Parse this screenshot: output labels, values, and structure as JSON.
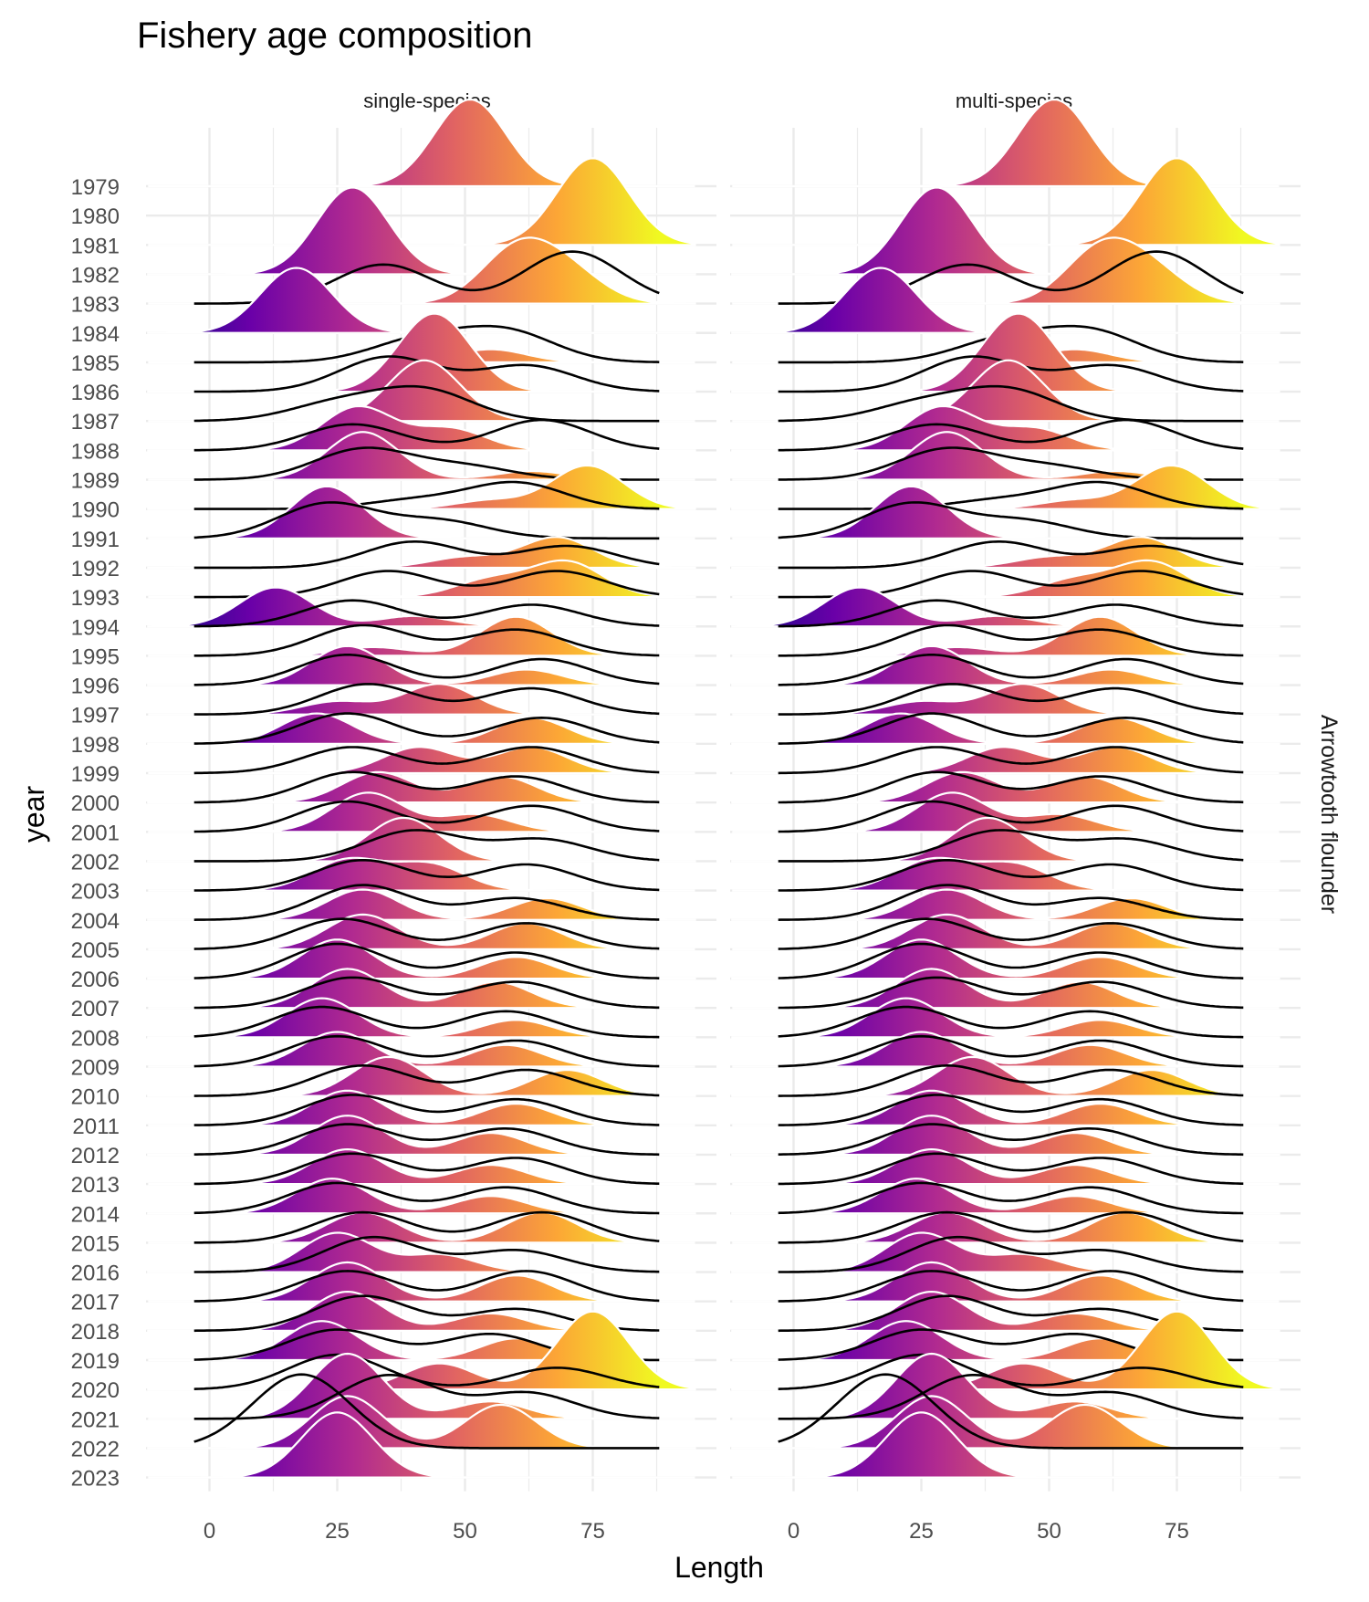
{
  "chart_data": {
    "type": "ridgeline",
    "title": "Fishery age composition",
    "xlabel": "Length",
    "ylabel": "year",
    "facet_right_label": "Arrowtooth flounder",
    "xlim": [
      -12,
      95
    ],
    "x_ticks": [
      0,
      25,
      50,
      75
    ],
    "grid": true,
    "palette": [
      "#0d0887",
      "#6a00a8",
      "#b12a90",
      "#e16462",
      "#fca636",
      "#f0f921"
    ],
    "years": [
      1979,
      1980,
      1981,
      1982,
      1983,
      1984,
      1985,
      1986,
      1987,
      1988,
      1989,
      1990,
      1991,
      1992,
      1993,
      1994,
      1995,
      1996,
      1997,
      1998,
      1999,
      2000,
      2001,
      2002,
      2003,
      2004,
      2005,
      2006,
      2007,
      2008,
      2009,
      2010,
      2011,
      2012,
      2013,
      2014,
      2015,
      2016,
      2017,
      2018,
      2019,
      2020,
      2021,
      2022,
      2023
    ],
    "panels": [
      {
        "name": "single-species"
      },
      {
        "name": "multi-species"
      }
    ],
    "observed_density_peaks": {
      "1979": [
        [
          51,
          1.0
        ]
      ],
      "1981": [
        [
          75,
          1.0
        ]
      ],
      "1982": [
        [
          28,
          1.0
        ]
      ],
      "1983": [
        [
          60,
          0.6
        ],
        [
          70,
          0.35
        ]
      ],
      "1984": [
        [
          17,
          0.75
        ]
      ],
      "1985": [
        [
          55,
          0.15
        ]
      ],
      "1986": [
        [
          44,
          0.9
        ]
      ],
      "1987": [
        [
          42,
          0.7
        ]
      ],
      "1988": [
        [
          29,
          0.5
        ],
        [
          47,
          0.25
        ]
      ],
      "1989": [
        [
          30,
          0.55
        ],
        [
          63,
          0.1
        ]
      ],
      "1990": [
        [
          74,
          0.5
        ],
        [
          55,
          0.1
        ]
      ],
      "1991": [
        [
          23,
          0.6
        ]
      ],
      "1992": [
        [
          68,
          0.35
        ],
        [
          50,
          0.12
        ]
      ],
      "1993": [
        [
          70,
          0.4
        ],
        [
          55,
          0.2
        ]
      ],
      "1994": [
        [
          13,
          0.45
        ],
        [
          40,
          0.12
        ]
      ],
      "1995": [
        [
          60,
          0.45
        ],
        [
          32,
          0.1
        ]
      ],
      "1996": [
        [
          27,
          0.45
        ],
        [
          62,
          0.18
        ]
      ],
      "1997": [
        [
          45,
          0.35
        ],
        [
          25,
          0.15
        ]
      ],
      "1998": [
        [
          21,
          0.35
        ],
        [
          63,
          0.3
        ]
      ],
      "1999": [
        [
          41,
          0.3
        ],
        [
          63,
          0.3
        ]
      ],
      "2000": [
        [
          33,
          0.35
        ],
        [
          57,
          0.3
        ]
      ],
      "2001": [
        [
          31,
          0.45
        ],
        [
          52,
          0.2
        ]
      ],
      "2002": [
        [
          38,
          0.5
        ]
      ],
      "2003": [
        [
          27,
          0.35
        ],
        [
          43,
          0.3
        ]
      ],
      "2004": [
        [
          30,
          0.35
        ],
        [
          66,
          0.25
        ]
      ],
      "2005": [
        [
          30,
          0.4
        ],
        [
          62,
          0.3
        ]
      ],
      "2006": [
        [
          25,
          0.45
        ],
        [
          60,
          0.25
        ]
      ],
      "2007": [
        [
          27,
          0.45
        ],
        [
          56,
          0.3
        ]
      ],
      "2008": [
        [
          22,
          0.45
        ],
        [
          60,
          0.2
        ]
      ],
      "2009": [
        [
          25,
          0.4
        ],
        [
          58,
          0.25
        ]
      ],
      "2010": [
        [
          35,
          0.45
        ],
        [
          70,
          0.3
        ]
      ],
      "2011": [
        [
          27,
          0.4
        ],
        [
          60,
          0.25
        ]
      ],
      "2012": [
        [
          27,
          0.45
        ],
        [
          55,
          0.25
        ]
      ],
      "2013": [
        [
          27,
          0.4
        ],
        [
          55,
          0.22
        ]
      ],
      "2014": [
        [
          24,
          0.4
        ],
        [
          55,
          0.2
        ]
      ],
      "2015": [
        [
          30,
          0.35
        ],
        [
          65,
          0.35
        ]
      ],
      "2016": [
        [
          25,
          0.45
        ],
        [
          45,
          0.2
        ]
      ],
      "2017": [
        [
          27,
          0.45
        ],
        [
          60,
          0.3
        ]
      ],
      "2018": [
        [
          27,
          0.45
        ],
        [
          55,
          0.2
        ]
      ],
      "2019": [
        [
          22,
          0.45
        ],
        [
          60,
          0.25
        ]
      ],
      "2020": [
        [
          75,
          0.9
        ],
        [
          45,
          0.3
        ]
      ],
      "2021": [
        [
          27,
          0.75
        ],
        [
          55,
          0.2
        ]
      ],
      "2022": [
        [
          27,
          0.6
        ],
        [
          57,
          0.5
        ]
      ],
      "2023": [
        [
          25,
          0.75
        ]
      ]
    },
    "predicted_density_peaks": {
      "1983": [
        [
          34,
          0.45
        ],
        [
          71,
          0.6
        ]
      ],
      "1985": [
        [
          41,
          0.25
        ],
        [
          58,
          0.35
        ]
      ],
      "1986": [
        [
          35,
          0.4
        ],
        [
          62,
          0.3
        ]
      ],
      "1987": [
        [
          42,
          0.35
        ],
        [
          25,
          0.2
        ]
      ],
      "1988": [
        [
          28,
          0.3
        ],
        [
          65,
          0.35
        ]
      ],
      "1989": [
        [
          30,
          0.35
        ],
        [
          50,
          0.15
        ]
      ],
      "1990": [
        [
          60,
          0.3
        ],
        [
          40,
          0.1
        ]
      ],
      "1991": [
        [
          23,
          0.4
        ],
        [
          45,
          0.2
        ]
      ],
      "1992": [
        [
          40,
          0.3
        ],
        [
          70,
          0.25
        ]
      ],
      "1993": [
        [
          35,
          0.3
        ],
        [
          68,
          0.3
        ]
      ],
      "1994": [
        [
          28,
          0.3
        ],
        [
          63,
          0.25
        ]
      ],
      "1995": [
        [
          30,
          0.35
        ],
        [
          60,
          0.3
        ]
      ],
      "1996": [
        [
          27,
          0.35
        ],
        [
          65,
          0.3
        ]
      ],
      "1997": [
        [
          31,
          0.35
        ],
        [
          63,
          0.3
        ]
      ],
      "1998": [
        [
          27,
          0.35
        ],
        [
          65,
          0.3
        ]
      ],
      "1999": [
        [
          28,
          0.3
        ],
        [
          63,
          0.3
        ]
      ],
      "2000": [
        [
          28,
          0.35
        ],
        [
          60,
          0.3
        ]
      ],
      "2001": [
        [
          27,
          0.35
        ],
        [
          63,
          0.3
        ]
      ],
      "2002": [
        [
          40,
          0.35
        ],
        [
          65,
          0.25
        ]
      ],
      "2003": [
        [
          30,
          0.35
        ],
        [
          62,
          0.3
        ]
      ],
      "2004": [
        [
          30,
          0.4
        ],
        [
          60,
          0.25
        ]
      ],
      "2005": [
        [
          26,
          0.35
        ],
        [
          62,
          0.3
        ]
      ],
      "2006": [
        [
          25,
          0.4
        ],
        [
          60,
          0.3
        ]
      ],
      "2007": [
        [
          28,
          0.35
        ],
        [
          60,
          0.3
        ]
      ],
      "2008": [
        [
          22,
          0.35
        ],
        [
          58,
          0.3
        ]
      ],
      "2009": [
        [
          25,
          0.35
        ],
        [
          60,
          0.3
        ]
      ],
      "2010": [
        [
          30,
          0.35
        ],
        [
          62,
          0.3
        ]
      ],
      "2011": [
        [
          28,
          0.35
        ],
        [
          60,
          0.3
        ]
      ],
      "2012": [
        [
          27,
          0.35
        ],
        [
          58,
          0.3
        ]
      ],
      "2013": [
        [
          28,
          0.35
        ],
        [
          60,
          0.3
        ]
      ],
      "2014": [
        [
          25,
          0.35
        ],
        [
          58,
          0.3
        ]
      ],
      "2015": [
        [
          30,
          0.35
        ],
        [
          65,
          0.35
        ]
      ],
      "2016": [
        [
          32,
          0.4
        ],
        [
          60,
          0.25
        ]
      ],
      "2017": [
        [
          27,
          0.35
        ],
        [
          62,
          0.35
        ]
      ],
      "2018": [
        [
          30,
          0.4
        ],
        [
          60,
          0.25
        ]
      ],
      "2019": [
        [
          25,
          0.35
        ],
        [
          55,
          0.3
        ]
      ],
      "2020": [
        [
          25,
          0.4
        ],
        [
          68,
          0.25
        ]
      ],
      "2021": [
        [
          35,
          0.5
        ],
        [
          62,
          0.3
        ]
      ],
      "2022": [
        [
          18,
          0.85
        ]
      ]
    }
  }
}
